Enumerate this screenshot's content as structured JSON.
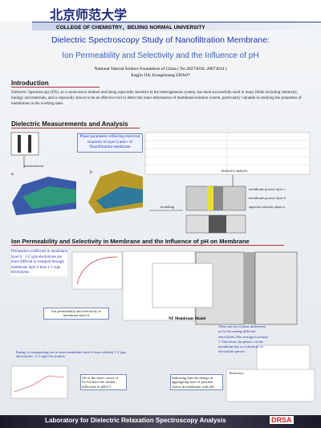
{
  "header": {
    "logo": "北京师范大学",
    "college": "COLLEGE OF CHEMISTRY，BEIJING NORMAL UNIVERSITY"
  },
  "title": "Dielectric Spectroscopy Study of Nanofiltration Membrane:",
  "subtitle": "Ion Permeability and Selectivity and the Influence of pH",
  "funding": "National Natural Science Foundation of China ( No.20273010; 20673014 )",
  "authors": "Jingjin JIA,  Kongshuang ZHAO*",
  "introduction": {
    "heading": "Introduction",
    "text": "Dielectric Spectroscopy (DS), as a noninvasive method and being especially sensitive to the heterogeneous system, has been successfully used in many fields including chemistry, biology and materials, and is especially shown to be an effective tool to detect the inner information of membrane/solution system, particularly valuable in studying the properties of membranes in the working state."
  },
  "dielectric": {
    "heading": "Dielectric Measurements and Analysis",
    "callout": "Phase parameters reflecting electrical character of layer b and c of Nanofiltration membrane",
    "measurement": "measurement",
    "analysis": "dielectric analysis",
    "modeling": "modeling",
    "panel_a": "a",
    "panel_b": "b",
    "layers": [
      "membrane porous layer c",
      "membrane porous layer b",
      "aqueous solution phase a"
    ]
  },
  "ion": {
    "heading": "Ion Permeability and Selectivity in Membrane and the Influence of pH on Membrane",
    "permeation": "Permeation coefficient in membrane layer b : 1-2 type electrolytes are more difficult to transport through membrane layer b than 1-1 type electrolytes",
    "permeability": "Ion permeability and selectivity in membrane layer b",
    "model": "NF Membrane Model",
    "energy": "Energy of transporting ion to enter membrane layer b from solution 1-2 type electrolytes >1-1 type electrolytes",
    "selectivity": "There are not evident differences in Gc/Ga among different electrolytes.The average is around 1. Therefore, the phase c of the membrane has no selectivity to electrolyte species.",
    "inflexions": "All of the three curves of Gc/Ga have the similar inflexions in pH 6-7.",
    "indicating": "Indicating that the change in aggregating state of polymer chains in membrane with pH."
  },
  "references": {
    "heading": "References"
  },
  "footer": {
    "text": "Laboratory for Dielectric Relaxation Spectroscopy Analysis",
    "logo": "DRSA"
  }
}
